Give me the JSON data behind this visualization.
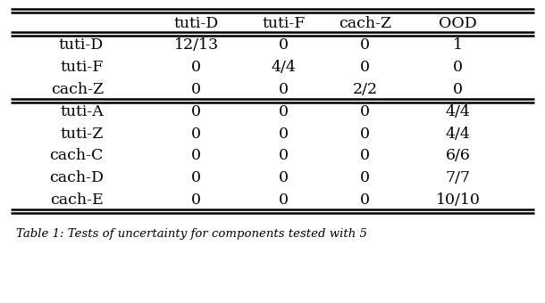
{
  "col_headers": [
    "",
    "tuti-D",
    "tuti-F",
    "cach-Z",
    "OOD"
  ],
  "rows": [
    [
      "tuti-D",
      "12/13",
      "0",
      "0",
      "1"
    ],
    [
      "tuti-F",
      "0",
      "4/4",
      "0",
      "0"
    ],
    [
      "cach-Z",
      "0",
      "0",
      "2/2",
      "0"
    ],
    [
      "tuti-A",
      "0",
      "0",
      "0",
      "4/4"
    ],
    [
      "tuti-Z",
      "0",
      "0",
      "0",
      "4/4"
    ],
    [
      "cach-C",
      "0",
      "0",
      "0",
      "6/6"
    ],
    [
      "cach-D",
      "0",
      "0",
      "0",
      "7/7"
    ],
    [
      "cach-E",
      "0",
      "0",
      "0",
      "10/10"
    ]
  ],
  "caption": "Table 1: Tests of uncertainty for components tested with 5",
  "bg_color": "#ffffff",
  "font_size": 12.5,
  "caption_font_size": 9.5
}
